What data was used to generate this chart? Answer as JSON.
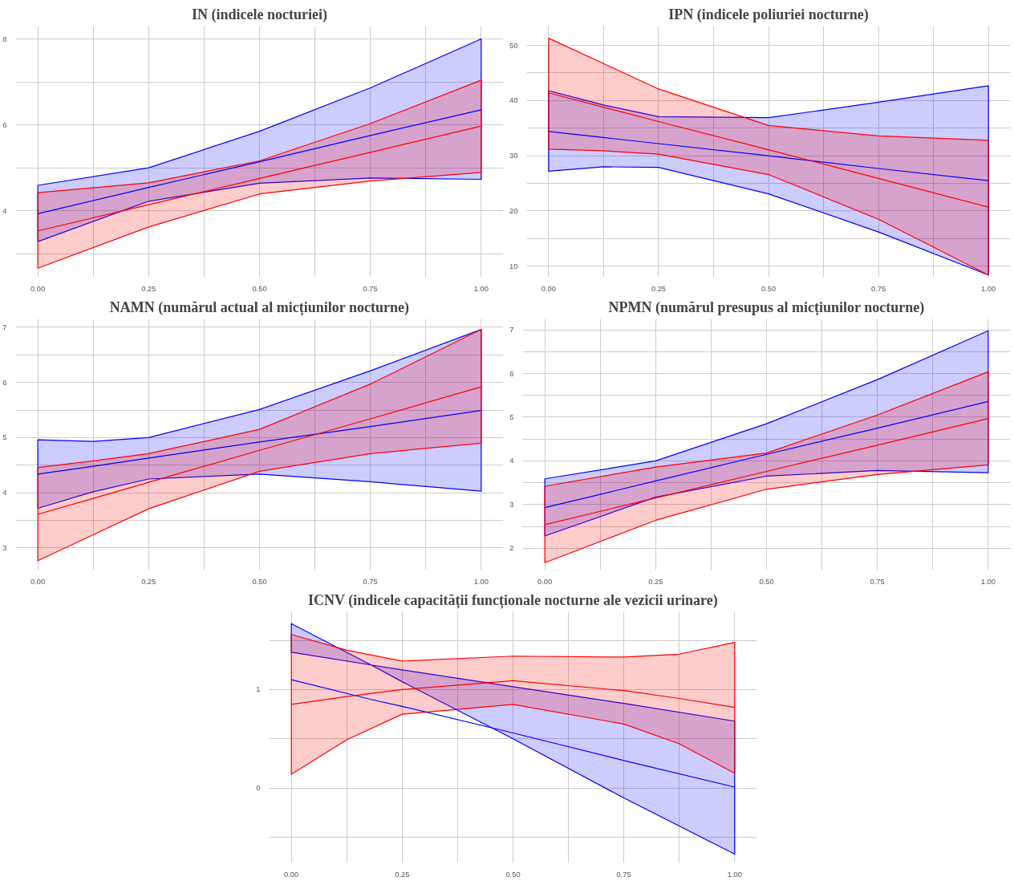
{
  "chart_data": [
    {
      "type": "line",
      "title": "IN (indicele nocturiei)",
      "x": [
        0,
        0.25,
        0.5,
        0.75,
        1
      ],
      "xlim": [
        -0.05,
        1.05
      ],
      "ylim": [
        2.45,
        8.3
      ],
      "grid": true,
      "xticks": [
        {
          "value": 0,
          "label": "0.00"
        },
        {
          "value": 0.125,
          "label": null
        },
        {
          "value": 0.25,
          "label": "0.25"
        },
        {
          "value": 0.375,
          "label": null
        },
        {
          "value": 0.5,
          "label": "0.50"
        },
        {
          "value": 0.625,
          "label": null
        },
        {
          "value": 0.75,
          "label": "0.75"
        },
        {
          "value": 0.875,
          "label": null
        },
        {
          "value": 1,
          "label": "1.00"
        }
      ],
      "yticks": [
        {
          "value": 3,
          "label": null
        },
        4,
        {
          "value": 5,
          "label": null
        },
        6,
        {
          "value": 7,
          "label": null
        },
        8
      ],
      "series": [
        {
          "color": "#0000ff",
          "values": [
            3.93,
            4.54,
            5.14,
            5.75,
            6.35
          ],
          "lower": [
            3.28,
            4.22,
            4.64,
            4.76,
            4.73
          ],
          "upper": [
            4.59,
            5.0,
            5.85,
            6.86,
            8.0
          ]
        },
        {
          "color": "#ff0000",
          "values": [
            3.53,
            4.14,
            4.75,
            5.36,
            5.97
          ],
          "lower": [
            2.66,
            3.62,
            4.39,
            4.69,
            4.89
          ],
          "upper": [
            4.42,
            4.65,
            5.16,
            6.03,
            7.04
          ]
        }
      ]
    },
    {
      "type": "line",
      "title": "IPN (indicele poliuriei nocturne)",
      "x": [
        0,
        0.125,
        0.25,
        0.5,
        0.75,
        1
      ],
      "xlim": [
        -0.05,
        1.05
      ],
      "ylim": [
        8,
        53.5
      ],
      "grid": true,
      "xticks": [
        {
          "value": 0,
          "label": "0.00"
        },
        {
          "value": 0.125,
          "label": null
        },
        {
          "value": 0.25,
          "label": "0.25"
        },
        {
          "value": 0.375,
          "label": null
        },
        {
          "value": 0.5,
          "label": "0.50"
        },
        {
          "value": 0.625,
          "label": null
        },
        {
          "value": 0.75,
          "label": "0.75"
        },
        {
          "value": 0.875,
          "label": null
        },
        {
          "value": 1,
          "label": "1.00"
        }
      ],
      "yticks": [
        10,
        {
          "value": 15,
          "label": null
        },
        20,
        {
          "value": 25,
          "label": null
        },
        30,
        {
          "value": 35,
          "label": null
        },
        40,
        {
          "value": 45,
          "label": null
        },
        50
      ],
      "series": [
        {
          "color": "#0000ff",
          "values": [
            34.4,
            33.3,
            32.2,
            30.0,
            27.7,
            25.5
          ],
          "lower": [
            27.2,
            28.0,
            27.9,
            23.1,
            16.2,
            8.4
          ],
          "upper": [
            41.8,
            39.2,
            37.1,
            36.9,
            39.7,
            42.7
          ]
        },
        {
          "color": "#ff0000",
          "values": [
            41.4,
            38.8,
            36.2,
            31.1,
            25.9,
            20.7
          ],
          "lower": [
            31.2,
            30.9,
            30.3,
            26.6,
            18.5,
            8.4
          ],
          "upper": [
            51.3,
            46.7,
            42.1,
            35.5,
            33.6,
            32.8
          ]
        }
      ]
    },
    {
      "type": "line",
      "title": "NAMN (numărul actual al micțiunilor nocturne)",
      "x": [
        0,
        0.125,
        0.25,
        0.5,
        0.75,
        1
      ],
      "xlim": [
        -0.05,
        1.05
      ],
      "ylim": [
        2.6,
        7.15
      ],
      "grid": true,
      "xticks": [
        {
          "value": 0,
          "label": "0.00"
        },
        {
          "value": 0.125,
          "label": null
        },
        {
          "value": 0.25,
          "label": "0.25"
        },
        {
          "value": 0.375,
          "label": null
        },
        {
          "value": 0.5,
          "label": "0.50"
        },
        {
          "value": 0.625,
          "label": null
        },
        {
          "value": 0.75,
          "label": "0.75"
        },
        {
          "value": 0.875,
          "label": null
        },
        {
          "value": 1,
          "label": "1.00"
        }
      ],
      "yticks": [
        3,
        {
          "value": 3.5,
          "label": null
        },
        4,
        {
          "value": 4.5,
          "label": null
        },
        5,
        {
          "value": 5.5,
          "label": null
        },
        6,
        {
          "value": 6.5,
          "label": null
        },
        7
      ],
      "series": [
        {
          "color": "#0000ff",
          "values": [
            4.34,
            4.48,
            4.63,
            4.92,
            5.2,
            5.49
          ],
          "lower": [
            3.72,
            4.02,
            4.25,
            4.34,
            4.2,
            4.03
          ],
          "upper": [
            4.96,
            4.93,
            5.0,
            5.51,
            6.21,
            6.96
          ]
        },
        {
          "color": "#ff0000",
          "values": [
            3.61,
            3.9,
            4.19,
            4.77,
            5.34,
            5.92
          ],
          "lower": [
            2.77,
            3.24,
            3.71,
            4.39,
            4.71,
            4.9
          ],
          "upper": [
            4.46,
            4.58,
            4.71,
            5.15,
            5.97,
            6.96
          ]
        }
      ]
    },
    {
      "type": "line",
      "title": "NPMN (numărul presupus al micțiunilor nocturne)",
      "x": [
        0,
        0.25,
        0.5,
        0.75,
        1
      ],
      "xlim": [
        -0.05,
        1.05
      ],
      "ylim": [
        1.5,
        7.25
      ],
      "grid": true,
      "xticks": [
        {
          "value": 0,
          "label": "0.00"
        },
        {
          "value": 0.125,
          "label": null
        },
        {
          "value": 0.25,
          "label": "0.25"
        },
        {
          "value": 0.375,
          "label": null
        },
        {
          "value": 0.5,
          "label": "0.50"
        },
        {
          "value": 0.625,
          "label": null
        },
        {
          "value": 0.75,
          "label": "0.75"
        },
        {
          "value": 0.875,
          "label": null
        },
        {
          "value": 1,
          "label": "1.00"
        }
      ],
      "yticks": [
        2,
        {
          "value": 2.5,
          "label": null
        },
        3,
        {
          "value": 3.5,
          "label": null
        },
        4,
        {
          "value": 4.5,
          "label": null
        },
        5,
        {
          "value": 5.5,
          "label": null
        },
        6,
        {
          "value": 6.5,
          "label": null
        },
        7
      ],
      "series": [
        {
          "color": "#0000ff",
          "values": [
            2.93,
            3.54,
            4.15,
            4.75,
            5.36
          ],
          "lower": [
            2.28,
            3.17,
            3.65,
            3.78,
            3.73
          ],
          "upper": [
            3.59,
            4.0,
            4.85,
            5.86,
            6.98
          ]
        },
        {
          "color": "#ff0000",
          "values": [
            2.54,
            3.15,
            3.76,
            4.36,
            4.97
          ],
          "lower": [
            1.67,
            2.64,
            3.35,
            3.69,
            3.91
          ],
          "upper": [
            3.42,
            3.86,
            4.18,
            5.05,
            6.04
          ]
        }
      ]
    },
    {
      "type": "line",
      "title": "ICNV (indicele capacității funcționale nocturne ale vezicii urinare)",
      "x": [
        0,
        0.125,
        0.25,
        0.5,
        0.75,
        0.875,
        1
      ],
      "xlim": [
        -0.05,
        1.05
      ],
      "ylim": [
        -0.76,
        1.79
      ],
      "grid": true,
      "xticks": [
        {
          "value": 0,
          "label": "0.00"
        },
        {
          "value": 0.125,
          "label": null
        },
        {
          "value": 0.25,
          "label": "0.25"
        },
        {
          "value": 0.375,
          "label": null
        },
        {
          "value": 0.5,
          "label": "0.50"
        },
        {
          "value": 0.625,
          "label": null
        },
        {
          "value": 0.75,
          "label": "0.75"
        },
        {
          "value": 0.875,
          "label": null
        },
        {
          "value": 1,
          "label": "1.00"
        }
      ],
      "yticks": [
        {
          "value": -0.5,
          "label": null
        },
        0,
        {
          "value": 0.5,
          "label": null
        },
        1,
        {
          "value": 1.5,
          "label": null
        }
      ],
      "series": [
        {
          "color": "#0000ff",
          "x": [
            0,
            0.18,
            0.25,
            0.5,
            0.75,
            1
          ],
          "values": [
            1.1,
            0.9,
            0.83,
            0.56,
            0.28,
            0.01
          ],
          "lower": [
            1.38,
            1.25,
            1.08,
            0.5,
            -0.1,
            -0.67
          ],
          "upper": [
            1.67,
            1.25,
            1.2,
            1.03,
            0.86,
            0.68
          ]
        },
        {
          "color": "#ff0000",
          "values": [
            0.85,
            0.93,
            1.0,
            1.09,
            0.99,
            0.91,
            0.82
          ],
          "lower": [
            0.14,
            0.49,
            0.75,
            0.85,
            0.65,
            0.45,
            0.15
          ],
          "upper": [
            1.56,
            1.4,
            1.29,
            1.34,
            1.33,
            1.36,
            1.48
          ]
        }
      ]
    }
  ]
}
